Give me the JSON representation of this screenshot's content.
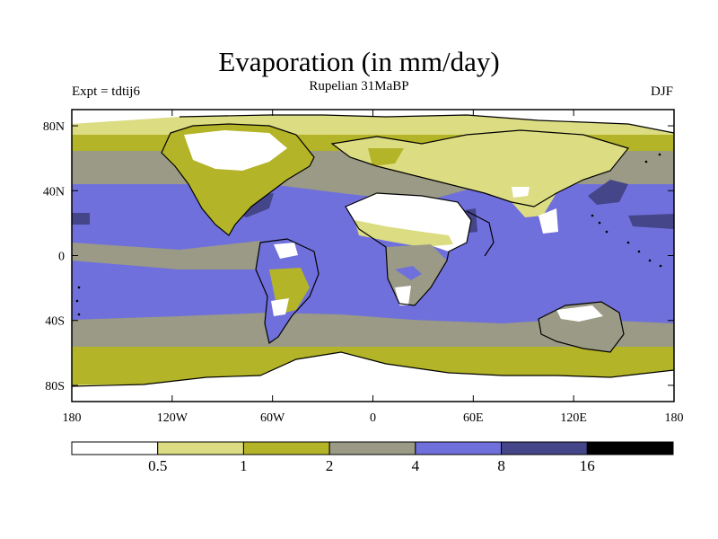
{
  "header": {
    "title": "Evaporation (in mm/day)",
    "subtitle": "Rupelian  31MaBP",
    "left_label": "Expt = tdtij6",
    "right_label": "DJF"
  },
  "map": {
    "x_ticks": [
      {
        "lon": -180,
        "label": "180"
      },
      {
        "lon": -120,
        "label": "120W"
      },
      {
        "lon": -60,
        "label": "60W"
      },
      {
        "lon": 0,
        "label": "0"
      },
      {
        "lon": 60,
        "label": "60E"
      },
      {
        "lon": 120,
        "label": "120E"
      },
      {
        "lon": 180,
        "label": "180"
      }
    ],
    "y_ticks": [
      {
        "lat": 80,
        "label": "80N"
      },
      {
        "lat": 40,
        "label": "40N"
      },
      {
        "lat": 0,
        "label": "0"
      },
      {
        "lat": -40,
        "label": "40S"
      },
      {
        "lat": -80,
        "label": "80S"
      }
    ],
    "lon_range": [
      -180,
      180
    ],
    "lat_range": [
      -90,
      90
    ]
  },
  "colorbar": {
    "levels": [
      "0.5",
      "1",
      "2",
      "4",
      "8",
      "16"
    ],
    "colors": [
      "#ffffff",
      "#dcdc82",
      "#b4b428",
      "#9a9a86",
      "#7070dc",
      "#45458a",
      "#000000"
    ]
  }
}
